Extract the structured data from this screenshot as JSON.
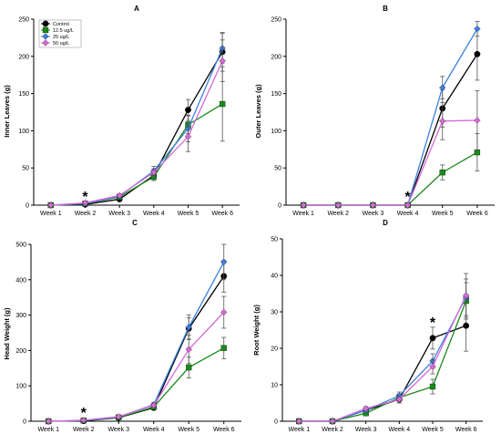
{
  "series_style": {
    "Control": {
      "color": "#000000",
      "marker": "circle"
    },
    "12.5 ug/L": {
      "color": "#1a8a1a",
      "marker": "square"
    },
    "25 ug/L": {
      "color": "#3d7fe0",
      "marker": "diamond"
    },
    "50 ug/L": {
      "color": "#d56ad5",
      "marker": "diamond"
    }
  },
  "chart_data": [
    {
      "type": "line",
      "title": "A",
      "ylabel": "Inner Leaves (g)",
      "xlabel": "",
      "categories": [
        "Week 1",
        "Week 2",
        "Week 3",
        "Week 4",
        "Week 5",
        "Week 6"
      ],
      "ylim": [
        0,
        250
      ],
      "yticks": [
        0,
        50,
        100,
        150,
        200,
        250
      ],
      "legend": [
        "Control",
        "12.5 ug/L",
        "25 ug/L",
        "50 ug/L"
      ],
      "series": [
        {
          "name": "Control",
          "values": [
            0,
            1,
            8,
            40,
            128,
            206
          ],
          "errors": [
            0,
            0,
            2,
            5,
            14,
            26
          ]
        },
        {
          "name": "12.5 ug/L",
          "values": [
            0,
            2,
            11,
            38,
            108,
            136
          ],
          "errors": [
            0,
            0,
            2,
            5,
            12,
            50
          ]
        },
        {
          "name": "25 ug/L",
          "values": [
            0,
            2,
            12,
            46,
            103,
            211
          ],
          "errors": [
            0,
            0,
            2,
            6,
            18,
            20
          ]
        },
        {
          "name": "50 ug/L",
          "values": [
            0,
            3,
            13,
            44,
            92,
            194
          ],
          "errors": [
            0,
            0,
            2,
            5,
            20,
            28
          ]
        }
      ],
      "annotations": [
        {
          "text": "*",
          "category": "Week 2"
        }
      ]
    },
    {
      "type": "line",
      "title": "B",
      "ylabel": "Outer Leaves (g)",
      "xlabel": "",
      "categories": [
        "Week 1",
        "Week 2",
        "Week 3",
        "Week 4",
        "Week 5",
        "Week 6"
      ],
      "ylim": [
        0,
        250
      ],
      "yticks": [
        0,
        50,
        100,
        150,
        200,
        250
      ],
      "legend": [],
      "series": [
        {
          "name": "Control",
          "values": [
            0,
            0,
            0,
            0,
            130,
            203
          ],
          "errors": [
            0,
            0,
            0,
            0,
            25,
            35
          ]
        },
        {
          "name": "12.5 ug/L",
          "values": [
            0,
            0,
            0,
            0,
            44,
            71
          ],
          "errors": [
            0,
            0,
            0,
            0,
            10,
            25
          ]
        },
        {
          "name": "25 ug/L",
          "values": [
            0,
            0,
            0,
            0,
            158,
            237
          ],
          "errors": [
            0,
            0,
            0,
            0,
            15,
            10
          ]
        },
        {
          "name": "50 ug/L",
          "values": [
            0,
            0,
            0,
            0,
            113,
            114
          ],
          "errors": [
            0,
            0,
            0,
            0,
            25,
            40
          ]
        }
      ],
      "annotations": [
        {
          "text": "*",
          "category": "Week 4"
        }
      ]
    },
    {
      "type": "line",
      "title": "C",
      "ylabel": "Head Weight (g)",
      "xlabel": "",
      "categories": [
        "Week 1",
        "Week 2",
        "Week 3",
        "Week 4",
        "Week 5",
        "Week 6"
      ],
      "ylim": [
        0,
        500
      ],
      "yticks": [
        0,
        100,
        200,
        300,
        400,
        500
      ],
      "legend": [],
      "series": [
        {
          "name": "Control",
          "values": [
            0,
            1,
            10,
            38,
            262,
            410
          ],
          "errors": [
            0,
            0,
            2,
            5,
            30,
            45
          ]
        },
        {
          "name": "12.5 ug/L",
          "values": [
            0,
            2,
            11,
            40,
            152,
            207
          ],
          "errors": [
            0,
            0,
            2,
            5,
            30,
            30
          ]
        },
        {
          "name": "25 ug/L",
          "values": [
            0,
            2,
            12,
            47,
            266,
            450
          ],
          "errors": [
            0,
            0,
            2,
            6,
            35,
            50
          ]
        },
        {
          "name": "50 ug/L",
          "values": [
            0,
            3,
            13,
            45,
            203,
            308
          ],
          "errors": [
            0,
            0,
            2,
            5,
            40,
            45
          ]
        }
      ],
      "annotations": [
        {
          "text": "*",
          "category": "Week 2"
        }
      ]
    },
    {
      "type": "line",
      "title": "D",
      "ylabel": "Root Weight (g)",
      "xlabel": "",
      "categories": [
        "Week 1",
        "Week 2",
        "Week 3",
        "Week 4",
        "Week 5",
        "Week 6"
      ],
      "ylim": [
        0,
        50
      ],
      "yticks": [
        0,
        10,
        20,
        30,
        40,
        50
      ],
      "legend": [],
      "series": [
        {
          "name": "Control",
          "values": [
            0,
            0,
            3,
            6,
            22.8,
            26.2
          ],
          "errors": [
            0,
            0,
            0.5,
            1,
            3,
            7
          ]
        },
        {
          "name": "12.5 ug/L",
          "values": [
            0,
            0,
            2.2,
            6.5,
            9.5,
            33
          ],
          "errors": [
            0,
            0,
            0.5,
            1,
            2,
            5
          ]
        },
        {
          "name": "25 ug/L",
          "values": [
            0,
            0,
            3,
            7,
            16.5,
            34
          ],
          "errors": [
            0,
            0,
            0.5,
            1,
            2,
            5
          ]
        },
        {
          "name": "50 ug/L",
          "values": [
            0,
            0,
            3.5,
            6,
            15,
            34.5
          ],
          "errors": [
            0,
            0,
            0.5,
            1,
            2,
            6
          ]
        }
      ],
      "annotations": [
        {
          "text": "*",
          "category": "Week 5"
        }
      ]
    }
  ]
}
